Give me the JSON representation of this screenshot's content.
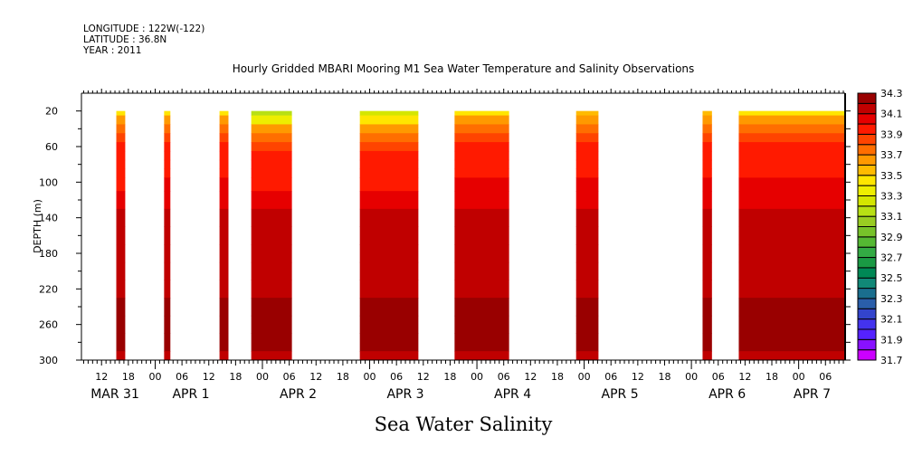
{
  "header": {
    "longitude": "LONGITUDE : 122W(-122)",
    "latitude": "LATITUDE : 36.8N",
    "year": "YEAR : 2011"
  },
  "chart_data": {
    "type": "heatmap",
    "title": "Hourly Gridded MBARI Mooring M1 Sea Water Temperature and Salinity Observations",
    "xlabel": "Sea Water Salinity",
    "ylabel": "DEPTH (m)",
    "x_units": "hours since MAR 31 00:00, 2011",
    "xlim": [
      7.5,
      178.4
    ],
    "ylim": [
      300,
      0
    ],
    "y_ticks": [
      20,
      60,
      100,
      140,
      180,
      220,
      260,
      300
    ],
    "y_tick_labels": [
      "20",
      "60",
      "100",
      "140",
      "180",
      "220",
      "260",
      "300"
    ],
    "x_ticks": [
      12,
      18,
      24,
      30,
      36,
      42,
      48,
      54,
      60,
      66,
      72,
      78,
      84,
      90,
      96,
      102,
      108,
      114,
      120,
      126,
      132,
      138,
      144,
      150,
      156,
      162,
      168,
      174
    ],
    "x_tick_labels": [
      "12",
      "18",
      "00",
      "06",
      "12",
      "18",
      "00",
      "06",
      "12",
      "18",
      "00",
      "06",
      "12",
      "18",
      "00",
      "06",
      "12",
      "18",
      "00",
      "06",
      "12",
      "18",
      "00",
      "06",
      "12",
      "18",
      "00",
      "06"
    ],
    "day_labels": [
      {
        "label": "MAR 31",
        "hour": 15
      },
      {
        "label": "APR  1",
        "hour": 32
      },
      {
        "label": "APR  2",
        "hour": 56
      },
      {
        "label": "APR  3",
        "hour": 80
      },
      {
        "label": "APR  4",
        "hour": 104
      },
      {
        "label": "APR  5",
        "hour": 128
      },
      {
        "label": "APR  6",
        "hour": 152
      },
      {
        "label": "APR  7",
        "hour": 171
      }
    ],
    "colorbar": {
      "min": 31.7,
      "max": 34.3,
      "step": 0.1,
      "labels": [
        "34.3",
        "34.1",
        "33.9",
        "33.7",
        "33.5",
        "33.3",
        "33.1",
        "32.9",
        "32.7",
        "32.5",
        "32.3",
        "32.1",
        "31.9",
        "31.7"
      ],
      "colors": [
        "#cc00ff",
        "#8811ff",
        "#5522ff",
        "#4433ee",
        "#3344cc",
        "#2a5eaa",
        "#1a6e8e",
        "#118877",
        "#008855",
        "#1a9944",
        "#33aa44",
        "#55b833",
        "#77c22a",
        "#99cc22",
        "#b8e014",
        "#d4e600",
        "#eeee00",
        "#ffe600",
        "#ffbb00",
        "#ff9900",
        "#ff6e00",
        "#ff4400",
        "#ff1a00",
        "#e60000",
        "#c00000",
        "#990000"
      ]
    },
    "depths": [
      20,
      30,
      40,
      50,
      60,
      70,
      80,
      90,
      100,
      120,
      140,
      160,
      180,
      200,
      220,
      240,
      260,
      280,
      300
    ],
    "segments": [
      {
        "start": 15.3,
        "end": 17.3,
        "values": [
          33.4,
          33.6,
          33.75,
          33.85,
          33.95,
          33.95,
          33.95,
          33.95,
          33.95,
          34.05,
          34.15,
          34.15,
          34.15,
          34.15,
          34.15,
          34.25,
          34.25,
          34.25,
          34.15
        ]
      },
      {
        "start": 26.0,
        "end": 27.4,
        "values": [
          33.45,
          33.65,
          33.75,
          33.85,
          33.95,
          33.95,
          33.95,
          33.95,
          34.05,
          34.05,
          34.15,
          34.15,
          34.15,
          34.15,
          34.15,
          34.25,
          34.25,
          34.25,
          34.15
        ]
      },
      {
        "start": 38.4,
        "end": 40.4,
        "values": [
          33.4,
          33.6,
          33.75,
          33.85,
          33.95,
          33.95,
          33.95,
          33.95,
          34.05,
          34.05,
          34.15,
          34.15,
          34.15,
          34.15,
          34.15,
          34.25,
          34.25,
          34.25,
          34.15
        ]
      },
      {
        "start": 45.5,
        "end": 54.6,
        "values": [
          33.1,
          33.3,
          33.6,
          33.7,
          33.8,
          33.95,
          33.95,
          33.95,
          33.95,
          34.05,
          34.15,
          34.15,
          34.15,
          34.15,
          34.15,
          34.25,
          34.25,
          34.25,
          34.15
        ]
      },
      {
        "start": 69.8,
        "end": 82.9,
        "values": [
          33.2,
          33.45,
          33.65,
          33.75,
          33.85,
          33.95,
          33.95,
          33.95,
          33.95,
          34.05,
          34.15,
          34.15,
          34.15,
          34.15,
          34.15,
          34.25,
          34.25,
          34.25,
          34.15
        ]
      },
      {
        "start": 91.0,
        "end": 103.2,
        "values": [
          33.4,
          33.6,
          33.75,
          33.85,
          33.95,
          33.95,
          33.95,
          33.95,
          34.05,
          34.05,
          34.15,
          34.15,
          34.15,
          34.15,
          34.15,
          34.25,
          34.25,
          34.25,
          34.15
        ]
      },
      {
        "start": 118.2,
        "end": 123.2,
        "values": [
          33.5,
          33.65,
          33.75,
          33.85,
          33.95,
          33.95,
          33.95,
          33.95,
          34.05,
          34.05,
          34.15,
          34.15,
          34.15,
          34.15,
          34.15,
          34.25,
          34.25,
          34.25,
          34.15
        ]
      },
      {
        "start": 146.5,
        "end": 148.6,
        "values": [
          33.5,
          33.65,
          33.75,
          33.85,
          33.95,
          33.95,
          33.95,
          33.95,
          34.05,
          34.05,
          34.15,
          34.15,
          34.15,
          34.15,
          34.15,
          34.25,
          34.25,
          34.25,
          34.15
        ]
      },
      {
        "start": 154.6,
        "end": 178.4,
        "values": [
          33.45,
          33.65,
          33.75,
          33.85,
          33.95,
          33.95,
          33.95,
          33.95,
          34.05,
          34.05,
          34.15,
          34.15,
          34.15,
          34.15,
          34.15,
          34.25,
          34.25,
          34.25,
          34.15
        ]
      }
    ]
  }
}
